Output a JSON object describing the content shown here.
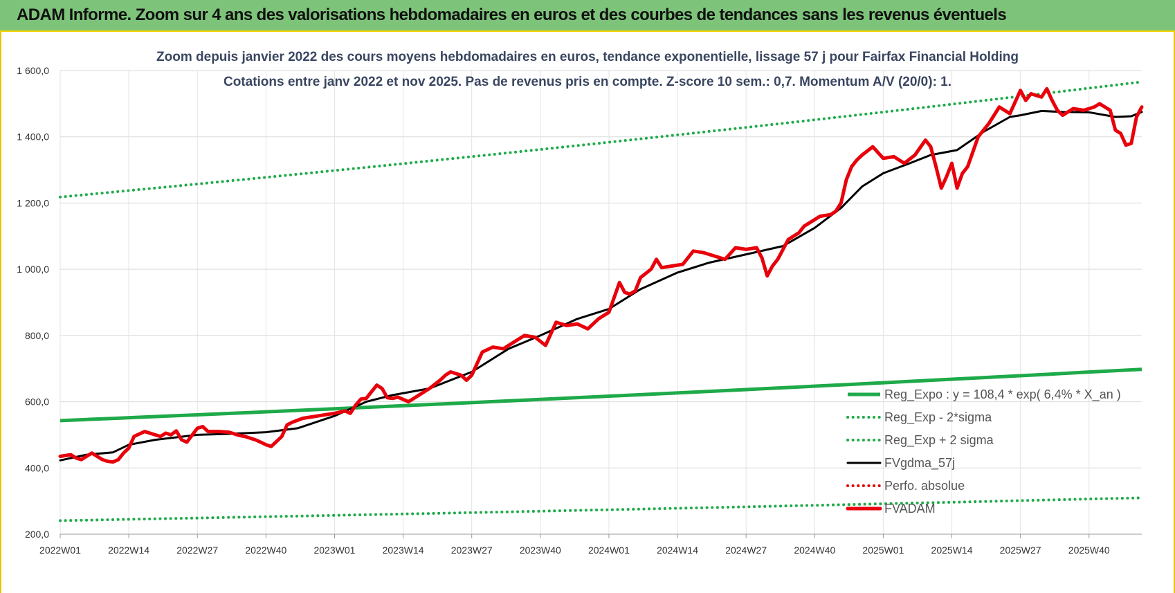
{
  "header": {
    "title": "ADAM Informe. Zoom sur 4 ans des valorisations hebdomadaires en euros et des courbes de tendances sans les revenus éventuels"
  },
  "chart_data": {
    "type": "line",
    "title_line1": "Zoom depuis janvier 2022 des cours moyens hebdomadaires en euros, tendance exponentielle, lissage 57 j pour Fairfax Financial Holding",
    "title_line2": "Cotations entre janv 2022 et nov 2025. Pas de revenus pris en compte. Z-score 10 sem.: 0,7. Momentum A/V (20/0): 1.",
    "xlabel": "",
    "ylabel": "",
    "ylim": [
      200,
      1600
    ],
    "y_ticks": [
      "200,0",
      "400,0",
      "600,0",
      "800,0",
      "1 000,0",
      "1 200,0",
      "1 400,0",
      "1 600,0"
    ],
    "y_tick_values": [
      200,
      400,
      600,
      800,
      1000,
      1200,
      1400,
      1600
    ],
    "x_ticks": [
      "2022W01",
      "2022W14",
      "2022W27",
      "2022W40",
      "2023W01",
      "2023W14",
      "2023W27",
      "2023W40",
      "2024W01",
      "2024W14",
      "2024W27",
      "2024W40",
      "2025W01",
      "2025W14",
      "2025W27",
      "2025W40"
    ],
    "x_tick_index": [
      0,
      13,
      26,
      39,
      52,
      65,
      78,
      91,
      104,
      117,
      130,
      143,
      156,
      169,
      182,
      195
    ],
    "x_max_index": 205,
    "grid": true,
    "legend_position": "bottom-right",
    "series": [
      {
        "name": "Reg_Expo : y = 108,4 * exp( 6,4% *  X_an )",
        "style": "solid-thick",
        "color": "#1faa4a",
        "x": [
          0,
          205
        ],
        "values": [
          543,
          698
        ]
      },
      {
        "name": "Reg_Exp - 2*sigma",
        "style": "dotted",
        "color": "#1faa4a",
        "x": [
          0,
          205
        ],
        "values": [
          241,
          310
        ]
      },
      {
        "name": "Reg_Exp + 2 sigma",
        "style": "dotted",
        "color": "#1faa4a",
        "x": [
          0,
          205
        ],
        "values": [
          1218,
          1566
        ]
      },
      {
        "name": "FVgdma_57j",
        "style": "solid",
        "color": "#000000",
        "x": [
          0,
          5,
          10,
          13,
          18,
          26,
          32,
          39,
          45,
          52,
          58,
          63,
          70,
          78,
          85,
          91,
          98,
          104,
          110,
          117,
          123,
          130,
          137,
          143,
          148,
          152,
          156,
          161,
          165,
          170,
          175,
          180,
          182,
          186,
          190,
          195,
          200,
          203,
          205
        ],
        "values": [
          423,
          440,
          447,
          470,
          485,
          500,
          503,
          508,
          520,
          557,
          600,
          620,
          640,
          690,
          760,
          800,
          850,
          880,
          940,
          990,
          1020,
          1045,
          1070,
          1125,
          1185,
          1250,
          1290,
          1320,
          1345,
          1360,
          1415,
          1460,
          1465,
          1478,
          1475,
          1474,
          1460,
          1462,
          1475
        ]
      },
      {
        "name": "Perfo. absolue",
        "style": "dotted",
        "color": "#e00000",
        "x": [],
        "values": []
      },
      {
        "name": "FVADAM",
        "style": "solid-thick",
        "color": "#e8000b",
        "x": [
          0,
          2,
          3,
          4,
          6,
          8,
          9,
          10,
          11,
          12,
          13,
          14,
          16,
          18,
          19,
          20,
          21,
          22,
          23,
          24,
          26,
          27,
          28,
          30,
          32,
          34,
          35,
          37,
          38,
          39,
          40,
          42,
          43,
          44,
          46,
          48,
          50,
          52,
          54,
          55,
          56,
          57,
          58,
          60,
          61,
          62,
          63,
          64,
          66,
          68,
          70,
          72,
          73,
          74,
          76,
          77,
          78,
          80,
          82,
          84,
          86,
          88,
          90,
          92,
          94,
          96,
          98,
          100,
          102,
          104,
          106,
          107,
          108,
          109,
          110,
          112,
          113,
          114,
          116,
          118,
          120,
          122,
          124,
          126,
          128,
          130,
          132,
          133,
          134,
          135,
          136,
          138,
          140,
          141,
          142,
          143,
          144,
          146,
          147,
          148,
          149,
          150,
          151,
          152,
          154,
          156,
          158,
          160,
          162,
          164,
          165,
          166,
          167,
          168,
          169,
          170,
          171,
          172,
          174,
          176,
          178,
          180,
          182,
          183,
          184,
          186,
          187,
          188,
          189,
          190,
          192,
          194,
          196,
          197,
          198,
          199,
          200,
          201,
          202,
          203,
          204,
          205
        ],
        "values": [
          435,
          440,
          430,
          425,
          445,
          425,
          420,
          418,
          425,
          445,
          460,
          495,
          510,
          500,
          495,
          505,
          500,
          512,
          485,
          478,
          520,
          525,
          510,
          510,
          508,
          498,
          495,
          485,
          478,
          470,
          465,
          495,
          530,
          538,
          550,
          555,
          560,
          565,
          572,
          565,
          590,
          608,
          610,
          650,
          640,
          612,
          610,
          614,
          600,
          620,
          640,
          665,
          680,
          690,
          680,
          665,
          680,
          750,
          765,
          760,
          780,
          800,
          795,
          770,
          840,
          830,
          835,
          820,
          850,
          870,
          960,
          930,
          925,
          935,
          975,
          1000,
          1030,
          1005,
          1010,
          1015,
          1055,
          1050,
          1040,
          1030,
          1065,
          1060,
          1065,
          1035,
          980,
          1010,
          1030,
          1090,
          1110,
          1130,
          1140,
          1150,
          1160,
          1165,
          1175,
          1200,
          1270,
          1310,
          1330,
          1345,
          1370,
          1335,
          1340,
          1320,
          1345,
          1390,
          1370,
          1310,
          1245,
          1280,
          1320,
          1245,
          1290,
          1310,
          1400,
          1440,
          1490,
          1470,
          1540,
          1510,
          1530,
          1520,
          1545,
          1510,
          1480,
          1465,
          1485,
          1480,
          1490,
          1500,
          1490,
          1480,
          1420,
          1410,
          1375,
          1380,
          1460,
          1490
        ]
      }
    ]
  }
}
